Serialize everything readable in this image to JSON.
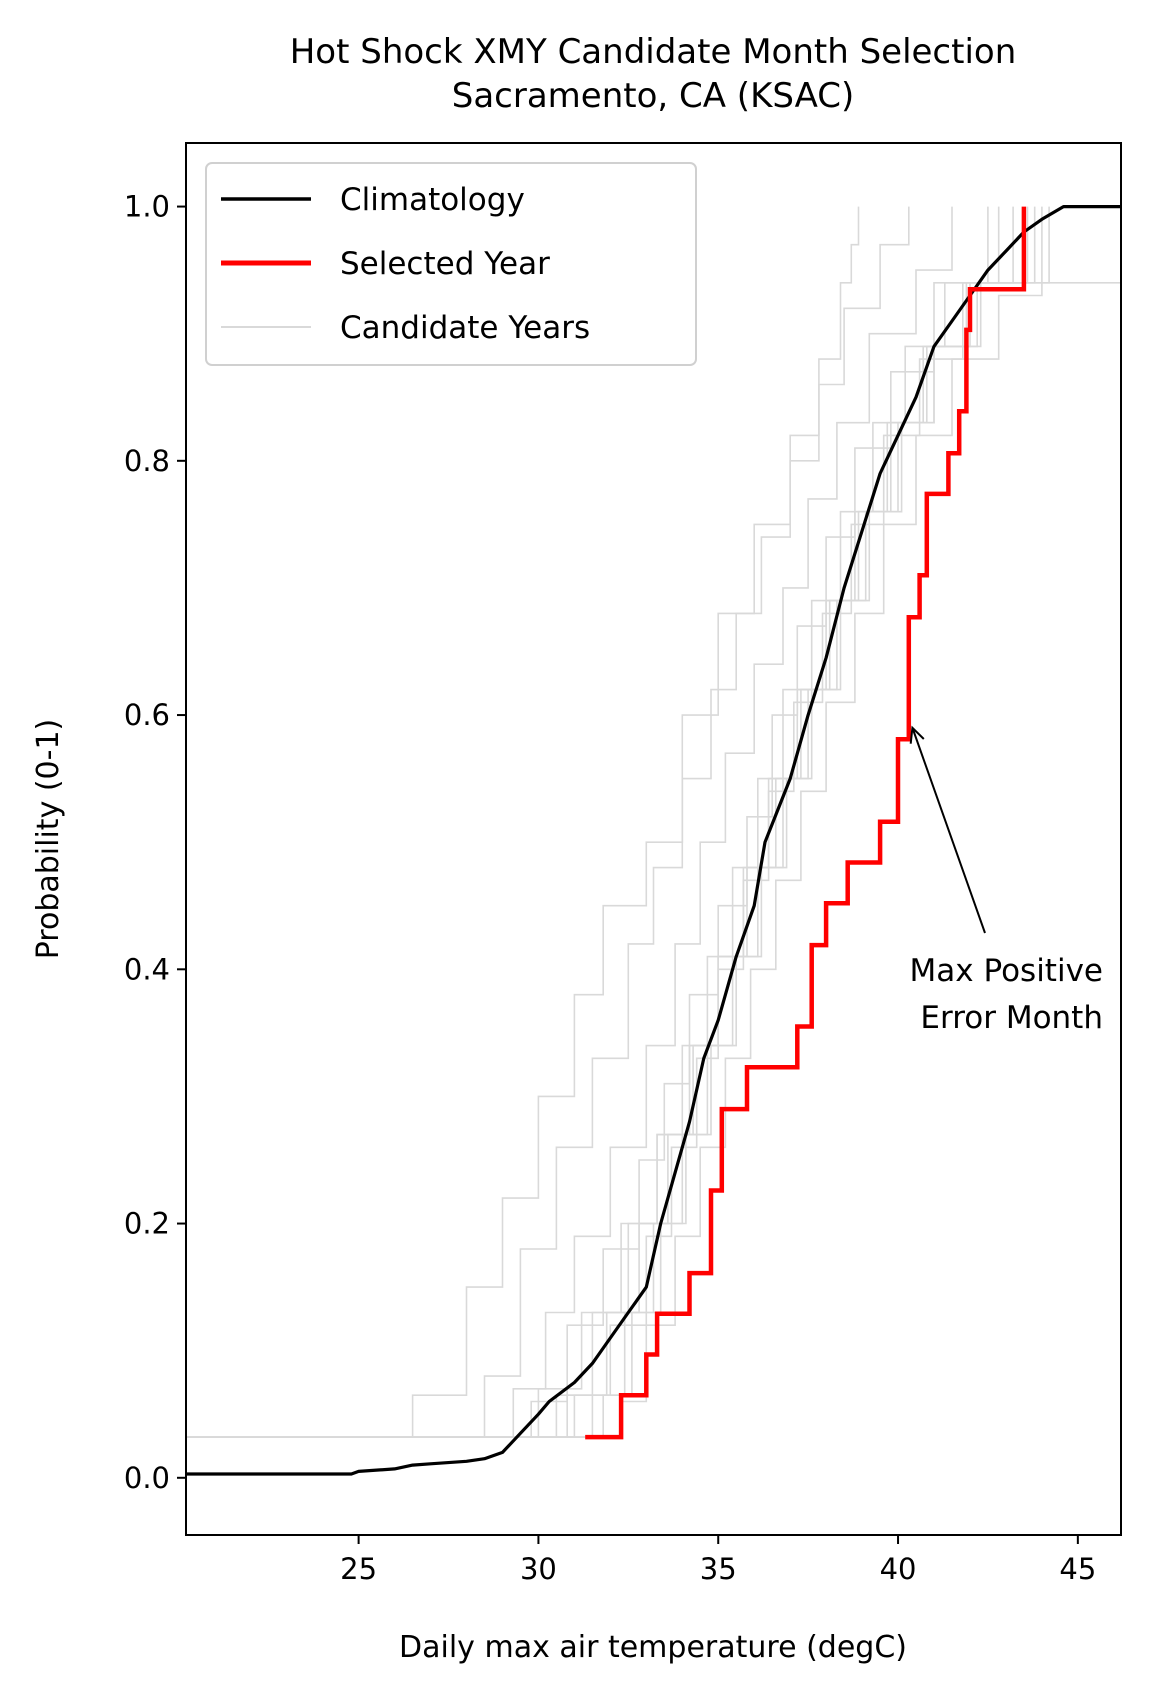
{
  "chart_data": {
    "type": "line",
    "title": "Hot Shock XMY Candidate Month Selection",
    "subtitle": "Sacramento, CA (KSAC)",
    "xlabel": "Daily max air temperature (degC)",
    "ylabel": "Probability (0-1)",
    "xlim": [
      20.2,
      46.2
    ],
    "ylim": [
      -0.045,
      1.05
    ],
    "xticks": [
      25,
      30,
      35,
      40,
      45
    ],
    "yticks": [
      0.0,
      0.2,
      0.4,
      0.6,
      0.8,
      1.0
    ],
    "xtick_labels": [
      "25",
      "30",
      "35",
      "40",
      "45"
    ],
    "ytick_labels": [
      "0.0",
      "0.2",
      "0.4",
      "0.6",
      "0.8",
      "1.0"
    ],
    "grid": false,
    "legend_position": "upper-left",
    "legend": {
      "climatology": "Climatology",
      "selected": "Selected Year",
      "candidates": "Candidate Years"
    },
    "colors": {
      "climatology": "#000000",
      "selected": "#ff0000",
      "candidates": "#d9d9d9"
    },
    "annotation": {
      "line1": "Max Positive",
      "line2": "Error Month",
      "arrow_to": [
        40.4,
        0.59
      ]
    },
    "series": [
      {
        "name": "Climatology",
        "style": "cdf",
        "x": [
          20.2,
          24.8,
          25.0,
          26.0,
          26.5,
          27.0,
          28.0,
          28.5,
          29.0,
          29.5,
          30.0,
          30.3,
          31.0,
          31.5,
          32.0,
          32.5,
          33.0,
          33.4,
          33.8,
          34.2,
          34.6,
          35.0,
          35.5,
          36.0,
          36.3,
          37.0,
          37.5,
          38.0,
          38.5,
          39.0,
          39.5,
          40.0,
          40.5,
          41.0,
          41.5,
          42.0,
          42.5,
          43.0,
          43.5,
          44.0,
          44.6,
          45.0,
          46.2
        ],
        "y": [
          0.003,
          0.003,
          0.005,
          0.007,
          0.01,
          0.011,
          0.013,
          0.015,
          0.02,
          0.035,
          0.05,
          0.06,
          0.075,
          0.09,
          0.11,
          0.13,
          0.15,
          0.2,
          0.24,
          0.28,
          0.33,
          0.36,
          0.41,
          0.45,
          0.5,
          0.55,
          0.6,
          0.645,
          0.7,
          0.745,
          0.79,
          0.82,
          0.85,
          0.89,
          0.91,
          0.93,
          0.95,
          0.965,
          0.98,
          0.99,
          1.0,
          1.0,
          1.0
        ]
      },
      {
        "name": "Selected Year",
        "style": "step",
        "x": [
          31.3,
          32.3,
          33.0,
          33.3,
          34.2,
          34.8,
          35.1,
          35.8,
          37.2,
          37.6,
          38.0,
          38.6,
          39.5,
          40.0,
          40.3,
          40.6,
          40.8,
          41.4,
          41.7,
          41.9,
          42.0,
          42.4,
          43.2,
          43.5
        ],
        "y": [
          0.032,
          0.065,
          0.097,
          0.129,
          0.161,
          0.226,
          0.29,
          0.323,
          0.355,
          0.419,
          0.452,
          0.484,
          0.516,
          0.581,
          0.677,
          0.71,
          0.774,
          0.806,
          0.839,
          0.903,
          0.935,
          0.935,
          0.935,
          1.0
        ]
      }
    ],
    "candidate_series": [
      {
        "x": [
          20.2,
          26.5,
          28.0,
          29.0,
          30.0,
          31.0,
          31.8,
          33.0,
          34.0,
          35.0,
          36.0,
          37.0,
          37.8,
          38.4,
          38.7,
          38.9
        ],
        "y": [
          0.032,
          0.065,
          0.15,
          0.22,
          0.3,
          0.38,
          0.45,
          0.5,
          0.6,
          0.68,
          0.75,
          0.82,
          0.88,
          0.94,
          0.97,
          1.0
        ]
      },
      {
        "x": [
          20.2,
          28.5,
          29.5,
          30.5,
          31.5,
          32.5,
          33.2,
          34.0,
          34.8,
          35.5,
          36.2,
          37.0,
          37.8,
          38.5,
          39.5,
          40.3
        ],
        "y": [
          0.032,
          0.08,
          0.18,
          0.26,
          0.33,
          0.42,
          0.48,
          0.55,
          0.62,
          0.68,
          0.74,
          0.8,
          0.86,
          0.92,
          0.97,
          1.0
        ]
      },
      {
        "x": [
          20.2,
          29.3,
          30.2,
          31.0,
          32.0,
          33.0,
          33.8,
          34.5,
          35.2,
          36.0,
          36.8,
          37.5,
          38.3,
          39.2,
          40.5,
          41.5
        ],
        "y": [
          0.032,
          0.07,
          0.13,
          0.19,
          0.26,
          0.34,
          0.42,
          0.5,
          0.57,
          0.64,
          0.7,
          0.77,
          0.83,
          0.9,
          0.95,
          1.0
        ]
      },
      {
        "x": [
          20.2,
          29.8,
          30.8,
          31.8,
          32.8,
          33.5,
          34.2,
          35.0,
          35.8,
          36.5,
          37.2,
          38.0,
          38.8,
          39.8,
          41.0,
          42.5
        ],
        "y": [
          0.032,
          0.06,
          0.12,
          0.18,
          0.25,
          0.31,
          0.38,
          0.45,
          0.52,
          0.6,
          0.67,
          0.74,
          0.81,
          0.87,
          0.94,
          1.0
        ]
      },
      {
        "x": [
          20.2,
          30.5,
          31.5,
          32.5,
          33.3,
          34.0,
          34.7,
          35.4,
          36.1,
          36.8,
          37.6,
          38.4,
          39.3,
          40.2,
          41.3,
          42.8
        ],
        "y": [
          0.032,
          0.065,
          0.13,
          0.2,
          0.27,
          0.34,
          0.41,
          0.48,
          0.55,
          0.62,
          0.69,
          0.76,
          0.83,
          0.89,
          0.94,
          1.0
        ]
      },
      {
        "x": [
          20.2,
          31.0,
          32.0,
          33.0,
          33.7,
          34.4,
          35.0,
          35.7,
          36.4,
          37.1,
          37.9,
          38.7,
          39.6,
          40.6,
          41.8,
          43.2
        ],
        "y": [
          0.032,
          0.065,
          0.12,
          0.19,
          0.26,
          0.33,
          0.4,
          0.47,
          0.54,
          0.61,
          0.68,
          0.75,
          0.82,
          0.88,
          0.94,
          1.0
        ]
      },
      {
        "x": [
          20.2,
          31.8,
          32.6,
          33.4,
          34.1,
          34.8,
          35.5,
          36.2,
          36.9,
          37.6,
          38.4,
          39.2,
          40.1,
          41.0,
          42.2,
          43.6
        ],
        "y": [
          0.032,
          0.065,
          0.13,
          0.2,
          0.27,
          0.34,
          0.41,
          0.48,
          0.55,
          0.62,
          0.69,
          0.76,
          0.83,
          0.89,
          0.94,
          1.0
        ]
      },
      {
        "x": [
          20.2,
          32.3,
          33.0,
          33.8,
          34.5,
          35.2,
          35.9,
          36.6,
          37.3,
          38.0,
          38.8,
          39.6,
          40.5,
          41.5,
          42.8,
          44.0
        ],
        "y": [
          0.032,
          0.06,
          0.12,
          0.19,
          0.26,
          0.33,
          0.4,
          0.47,
          0.54,
          0.61,
          0.68,
          0.75,
          0.82,
          0.88,
          0.93,
          1.0
        ]
      },
      {
        "x": [
          20.2,
          30.0,
          31.2,
          32.3,
          33.3,
          34.2,
          35.0,
          35.8,
          36.6,
          37.3,
          38.1,
          38.9,
          39.8,
          40.8,
          42.0,
          46.2
        ],
        "y": [
          0.032,
          0.07,
          0.13,
          0.2,
          0.27,
          0.34,
          0.41,
          0.48,
          0.55,
          0.62,
          0.69,
          0.76,
          0.83,
          0.89,
          0.94,
          0.968
        ]
      },
      {
        "x": [
          20.2,
          30.8,
          31.9,
          32.8,
          33.6,
          34.3,
          35.0,
          35.7,
          36.4,
          37.2,
          38.0,
          38.8,
          39.7,
          40.7,
          41.9,
          43.8
        ],
        "y": [
          0.032,
          0.065,
          0.13,
          0.2,
          0.27,
          0.34,
          0.41,
          0.48,
          0.55,
          0.62,
          0.69,
          0.76,
          0.83,
          0.89,
          0.94,
          1.0
        ]
      },
      {
        "x": [
          20.2,
          31.5,
          32.4,
          33.2,
          34.0,
          34.7,
          35.4,
          36.1,
          36.8,
          37.5,
          38.3,
          39.1,
          40.0,
          41.0,
          42.3,
          44.2
        ],
        "y": [
          0.032,
          0.065,
          0.13,
          0.2,
          0.27,
          0.34,
          0.41,
          0.48,
          0.55,
          0.62,
          0.69,
          0.76,
          0.83,
          0.89,
          0.94,
          1.0
        ]
      }
    ]
  }
}
